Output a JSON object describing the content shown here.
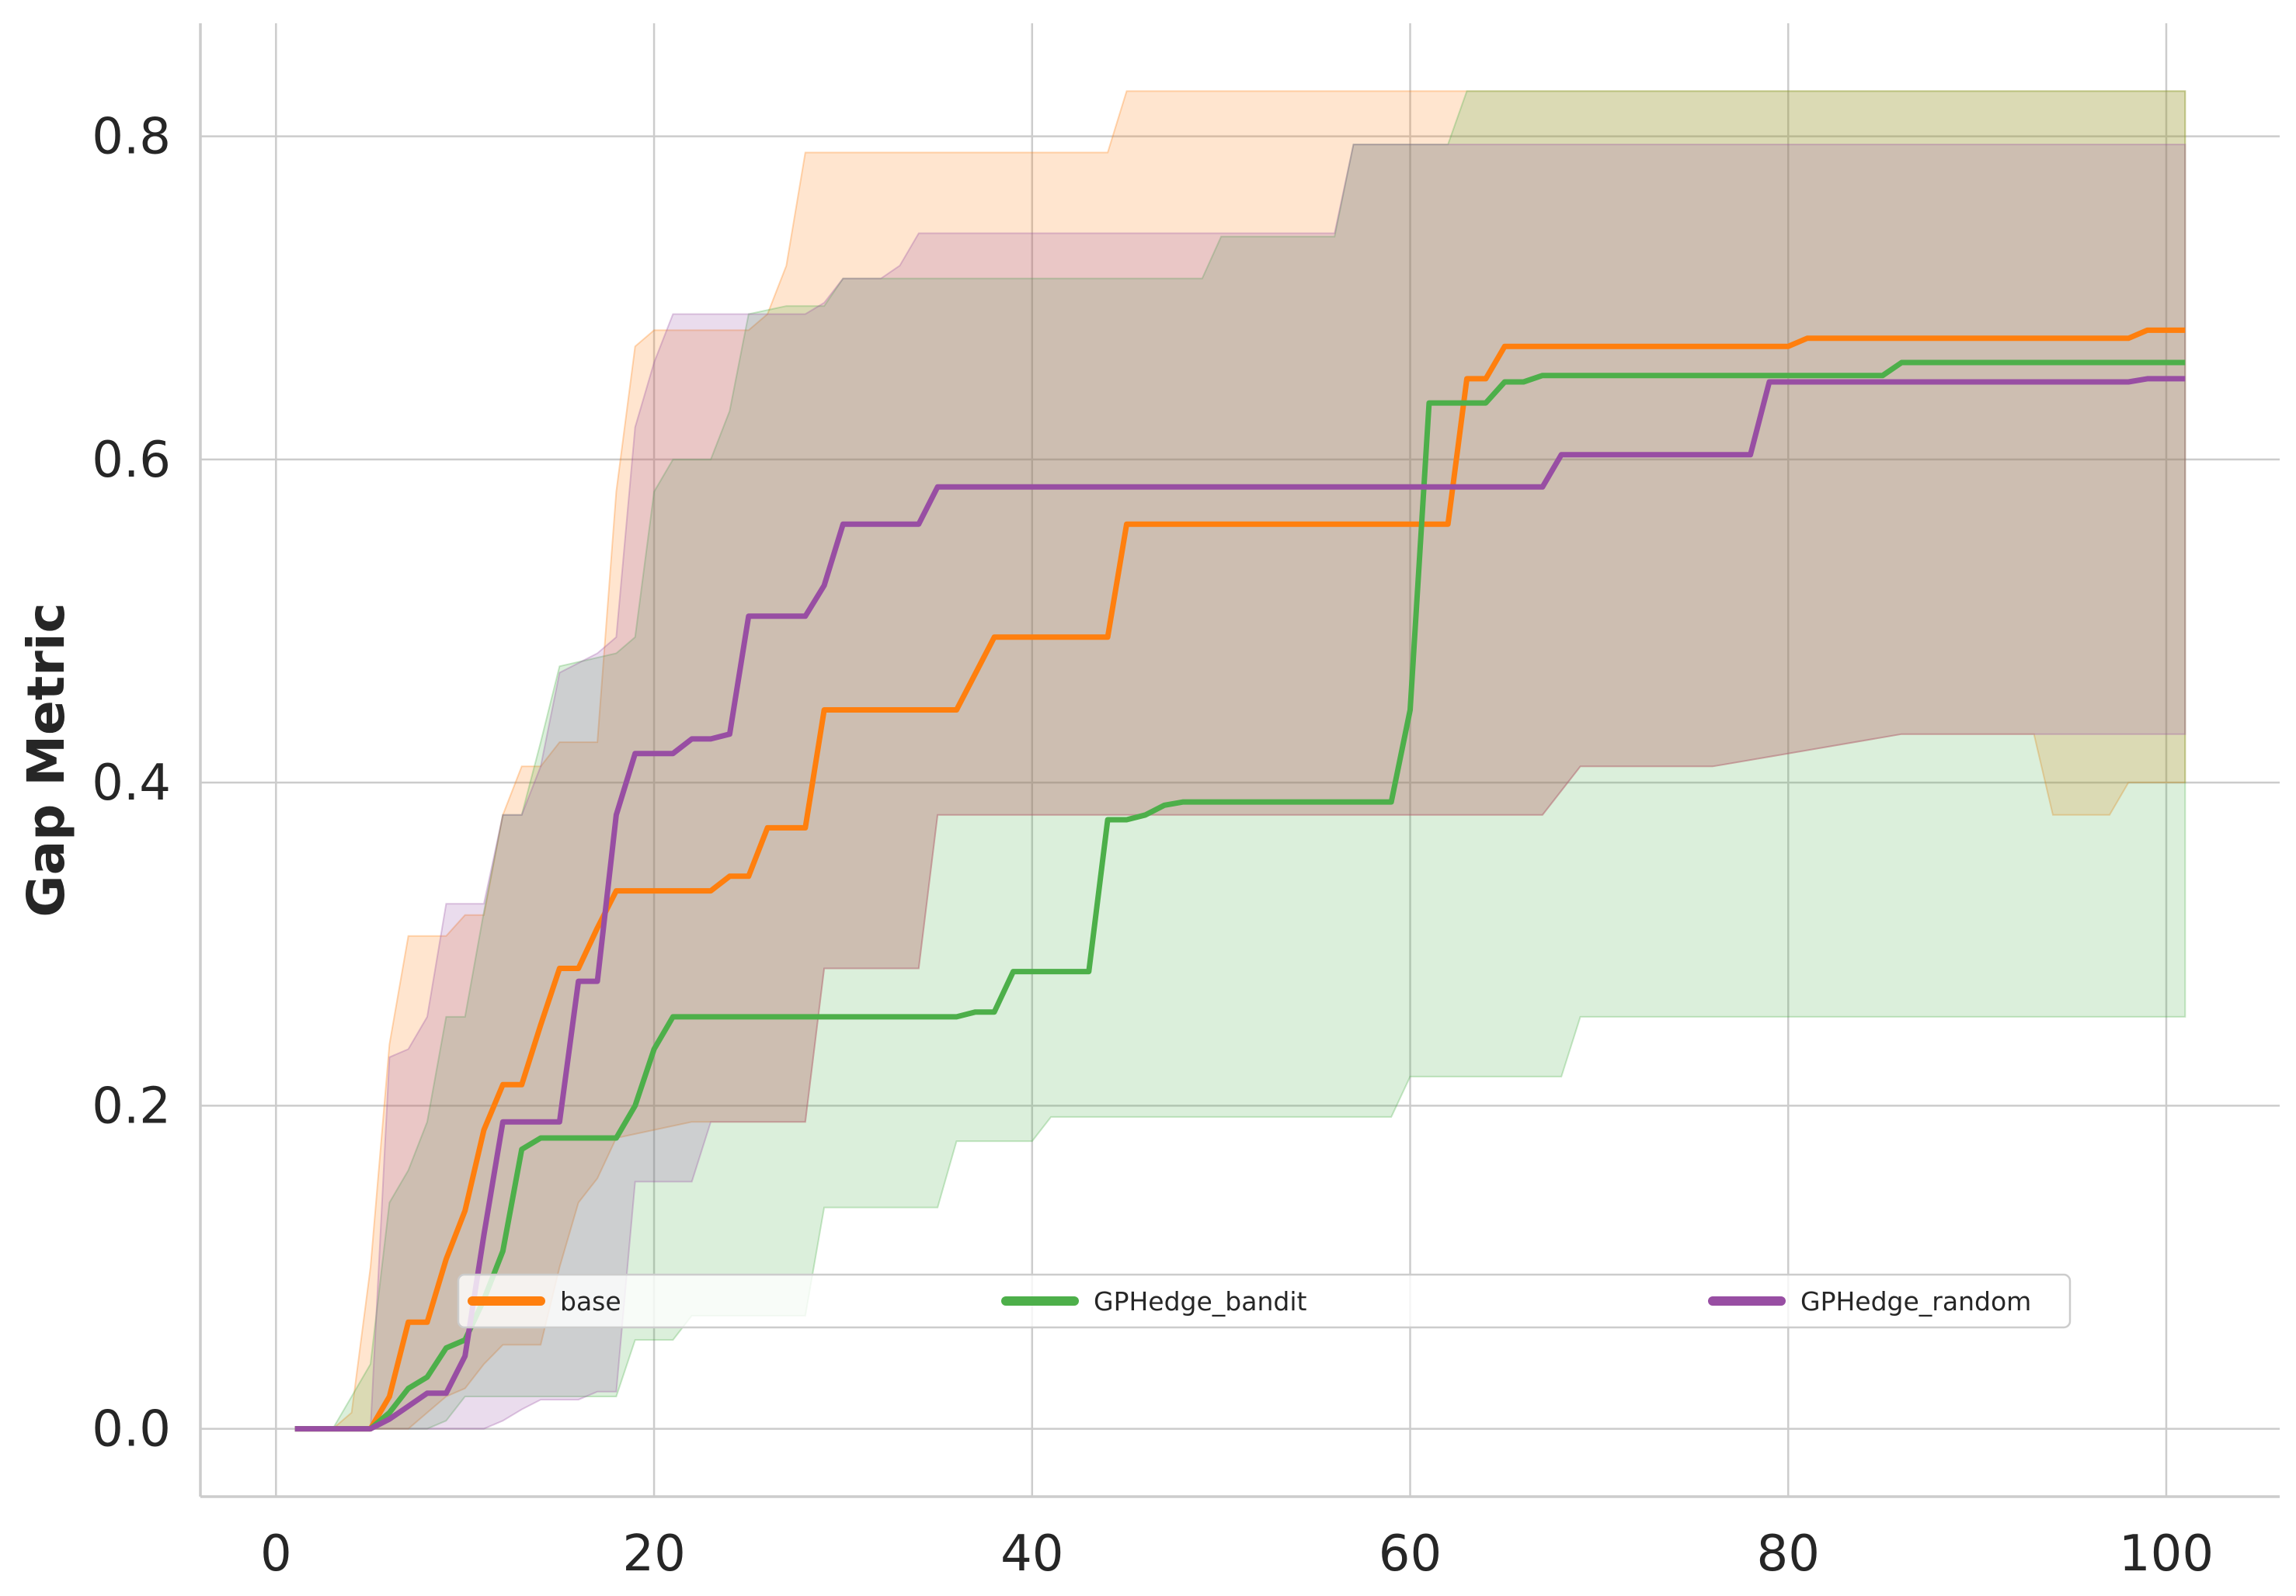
{
  "chart_data": {
    "type": "line",
    "title": "",
    "xlabel": "",
    "ylabel": "Gap Metric",
    "xlim": [
      -4,
      106
    ],
    "ylim": [
      -0.042,
      0.87
    ],
    "xticks": [
      0,
      20,
      40,
      60,
      80,
      100
    ],
    "xtick_labels": [
      "0",
      "20",
      "40",
      "60",
      "80",
      "100"
    ],
    "yticks": [
      0.0,
      0.2,
      0.4,
      0.6,
      0.8
    ],
    "ytick_labels": [
      "0.0",
      "0.2",
      "0.4",
      "0.6",
      "0.8"
    ],
    "grid": true,
    "legend": {
      "placement": "lower center",
      "ncol": 3
    },
    "series": [
      {
        "name": "base",
        "color": "#ff7f0e",
        "points": [
          [
            1,
            0
          ],
          [
            5,
            0
          ],
          [
            6,
            0.02
          ],
          [
            7,
            0.066
          ],
          [
            8,
            0.066
          ],
          [
            9,
            0.105
          ],
          [
            10,
            0.135
          ],
          [
            11,
            0.185
          ],
          [
            12,
            0.213
          ],
          [
            13,
            0.213
          ],
          [
            14,
            0.25
          ],
          [
            15,
            0.285
          ],
          [
            16,
            0.285
          ],
          [
            17,
            0.31
          ],
          [
            18,
            0.333
          ],
          [
            23,
            0.333
          ],
          [
            24,
            0.342
          ],
          [
            25,
            0.342
          ],
          [
            26,
            0.372
          ],
          [
            28,
            0.372
          ],
          [
            29,
            0.445
          ],
          [
            36,
            0.445
          ],
          [
            38,
            0.49
          ],
          [
            44,
            0.49
          ],
          [
            45,
            0.56
          ],
          [
            62,
            0.56
          ],
          [
            63,
            0.65
          ],
          [
            64,
            0.65
          ],
          [
            65,
            0.67
          ],
          [
            80,
            0.67
          ],
          [
            81,
            0.675
          ],
          [
            98,
            0.675
          ],
          [
            99,
            0.68
          ],
          [
            101,
            0.68
          ]
        ],
        "band_upper": [
          [
            3,
            0
          ],
          [
            4,
            0.01
          ],
          [
            5,
            0.1
          ],
          [
            6,
            0.238
          ],
          [
            7,
            0.305
          ],
          [
            9,
            0.305
          ],
          [
            10,
            0.318
          ],
          [
            11,
            0.318
          ],
          [
            12,
            0.38
          ],
          [
            13,
            0.41
          ],
          [
            14,
            0.41
          ],
          [
            15,
            0.425
          ],
          [
            17,
            0.425
          ],
          [
            18,
            0.58
          ],
          [
            19,
            0.67
          ],
          [
            20,
            0.68
          ],
          [
            25,
            0.68
          ],
          [
            26,
            0.69
          ],
          [
            27,
            0.72
          ],
          [
            28,
            0.79
          ],
          [
            44,
            0.79
          ],
          [
            45,
            0.828
          ],
          [
            63,
            0.828
          ],
          [
            101,
            0.828
          ]
        ],
        "band_lower": [
          [
            3,
            0
          ],
          [
            6,
            0
          ],
          [
            7,
            0
          ],
          [
            8,
            0.01
          ],
          [
            9,
            0.02
          ],
          [
            10,
            0.025
          ],
          [
            11,
            0.04
          ],
          [
            12,
            0.052
          ],
          [
            14,
            0.052
          ],
          [
            15,
            0.1
          ],
          [
            16,
            0.14
          ],
          [
            17,
            0.155
          ],
          [
            18,
            0.18
          ],
          [
            22,
            0.19
          ],
          [
            28,
            0.19
          ],
          [
            29,
            0.285
          ],
          [
            34,
            0.285
          ],
          [
            35,
            0.38
          ],
          [
            56,
            0.38
          ],
          [
            57,
            0.38
          ],
          [
            67,
            0.38
          ],
          [
            69,
            0.41
          ],
          [
            76,
            0.41
          ],
          [
            77,
            0.412
          ],
          [
            86,
            0.43
          ],
          [
            93,
            0.43
          ],
          [
            94,
            0.38
          ],
          [
            97,
            0.38
          ],
          [
            98,
            0.4
          ],
          [
            101,
            0.4
          ]
        ]
      },
      {
        "name": "GPHedge_bandit",
        "color": "#4daf4a",
        "points": [
          [
            1,
            0
          ],
          [
            5,
            0
          ],
          [
            6,
            0.01
          ],
          [
            7,
            0.025
          ],
          [
            8,
            0.032
          ],
          [
            9,
            0.05
          ],
          [
            10,
            0.055
          ],
          [
            11,
            0.08
          ],
          [
            12,
            0.11
          ],
          [
            13,
            0.173
          ],
          [
            14,
            0.18
          ],
          [
            18,
            0.18
          ],
          [
            19,
            0.2
          ],
          [
            20,
            0.235
          ],
          [
            21,
            0.255
          ],
          [
            36,
            0.255
          ],
          [
            37,
            0.258
          ],
          [
            38,
            0.258
          ],
          [
            39,
            0.283
          ],
          [
            43,
            0.283
          ],
          [
            44,
            0.377
          ],
          [
            45,
            0.377
          ],
          [
            46,
            0.38
          ],
          [
            47,
            0.386
          ],
          [
            48,
            0.388
          ],
          [
            59,
            0.388
          ],
          [
            60,
            0.445
          ],
          [
            61,
            0.635
          ],
          [
            64,
            0.635
          ],
          [
            65,
            0.648
          ],
          [
            66,
            0.648
          ],
          [
            67,
            0.652
          ],
          [
            85,
            0.652
          ],
          [
            86,
            0.66
          ],
          [
            101,
            0.66
          ]
        ],
        "band_upper": [
          [
            3,
            0
          ],
          [
            4,
            0.02
          ],
          [
            5,
            0.04
          ],
          [
            6,
            0.14
          ],
          [
            7,
            0.16
          ],
          [
            8,
            0.19
          ],
          [
            9,
            0.255
          ],
          [
            10,
            0.255
          ],
          [
            11,
            0.32
          ],
          [
            12,
            0.38
          ],
          [
            13,
            0.38
          ],
          [
            14,
            0.425
          ],
          [
            15,
            0.472
          ],
          [
            18,
            0.48
          ],
          [
            19,
            0.49
          ],
          [
            20,
            0.58
          ],
          [
            21,
            0.6
          ],
          [
            23,
            0.6
          ],
          [
            24,
            0.63
          ],
          [
            25,
            0.69
          ],
          [
            27,
            0.695
          ],
          [
            29,
            0.695
          ],
          [
            30,
            0.712
          ],
          [
            34,
            0.712
          ],
          [
            49,
            0.712
          ],
          [
            50,
            0.738
          ],
          [
            56,
            0.738
          ],
          [
            57,
            0.795
          ],
          [
            62,
            0.795
          ],
          [
            63,
            0.828
          ],
          [
            101,
            0.828
          ]
        ],
        "band_lower": [
          [
            3,
            0
          ],
          [
            8,
            0
          ],
          [
            9,
            0.005
          ],
          [
            10,
            0.02
          ],
          [
            11,
            0.02
          ],
          [
            18,
            0.02
          ],
          [
            19,
            0.055
          ],
          [
            21,
            0.055
          ],
          [
            22,
            0.07
          ],
          [
            28,
            0.07
          ],
          [
            29,
            0.137
          ],
          [
            35,
            0.137
          ],
          [
            36,
            0.178
          ],
          [
            40,
            0.178
          ],
          [
            41,
            0.193
          ],
          [
            59,
            0.193
          ],
          [
            60,
            0.218
          ],
          [
            68,
            0.218
          ],
          [
            69,
            0.255
          ],
          [
            77,
            0.255
          ],
          [
            101,
            0.255
          ]
        ]
      },
      {
        "name": "GPHedge_random",
        "color": "#984ea3",
        "points": [
          [
            1,
            0
          ],
          [
            5,
            0
          ],
          [
            6,
            0.006
          ],
          [
            7,
            0.014
          ],
          [
            8,
            0.022
          ],
          [
            9,
            0.022
          ],
          [
            10,
            0.045
          ],
          [
            11,
            0.12
          ],
          [
            12,
            0.19
          ],
          [
            15,
            0.19
          ],
          [
            16,
            0.277
          ],
          [
            17,
            0.277
          ],
          [
            18,
            0.38
          ],
          [
            19,
            0.418
          ],
          [
            21,
            0.418
          ],
          [
            22,
            0.427
          ],
          [
            23,
            0.427
          ],
          [
            24,
            0.43
          ],
          [
            25,
            0.503
          ],
          [
            28,
            0.503
          ],
          [
            29,
            0.522
          ],
          [
            30,
            0.56
          ],
          [
            34,
            0.56
          ],
          [
            35,
            0.583
          ],
          [
            67,
            0.583
          ],
          [
            68,
            0.603
          ],
          [
            78,
            0.603
          ],
          [
            79,
            0.648
          ],
          [
            98,
            0.648
          ],
          [
            99,
            0.65
          ],
          [
            101,
            0.65
          ]
        ],
        "band_upper": [
          [
            5,
            0
          ],
          [
            6,
            0.23
          ],
          [
            7,
            0.235
          ],
          [
            8,
            0.255
          ],
          [
            9,
            0.325
          ],
          [
            11,
            0.325
          ],
          [
            12,
            0.38
          ],
          [
            13,
            0.38
          ],
          [
            14,
            0.41
          ],
          [
            15,
            0.468
          ],
          [
            17,
            0.48
          ],
          [
            18,
            0.49
          ],
          [
            19,
            0.62
          ],
          [
            20,
            0.66
          ],
          [
            21,
            0.69
          ],
          [
            24,
            0.69
          ],
          [
            25,
            0.69
          ],
          [
            26,
            0.69
          ],
          [
            27,
            0.69
          ],
          [
            28,
            0.69
          ],
          [
            29,
            0.697
          ],
          [
            30,
            0.712
          ],
          [
            32,
            0.712
          ],
          [
            33,
            0.72
          ],
          [
            34,
            0.74
          ],
          [
            56,
            0.74
          ],
          [
            57,
            0.795
          ],
          [
            101,
            0.795
          ]
        ],
        "band_lower": [
          [
            5,
            0
          ],
          [
            9,
            0
          ],
          [
            10,
            0
          ],
          [
            11,
            0
          ],
          [
            12,
            0.005
          ],
          [
            13,
            0.012
          ],
          [
            14,
            0.018
          ],
          [
            16,
            0.018
          ],
          [
            17,
            0.023
          ],
          [
            18,
            0.023
          ],
          [
            19,
            0.153
          ],
          [
            21,
            0.153
          ],
          [
            22,
            0.153
          ],
          [
            23,
            0.19
          ],
          [
            28,
            0.19
          ],
          [
            29,
            0.285
          ],
          [
            34,
            0.285
          ],
          [
            35,
            0.38
          ],
          [
            67,
            0.38
          ],
          [
            69,
            0.41
          ],
          [
            76,
            0.41
          ],
          [
            77,
            0.412
          ],
          [
            86,
            0.43
          ],
          [
            101,
            0.43
          ]
        ]
      }
    ]
  }
}
